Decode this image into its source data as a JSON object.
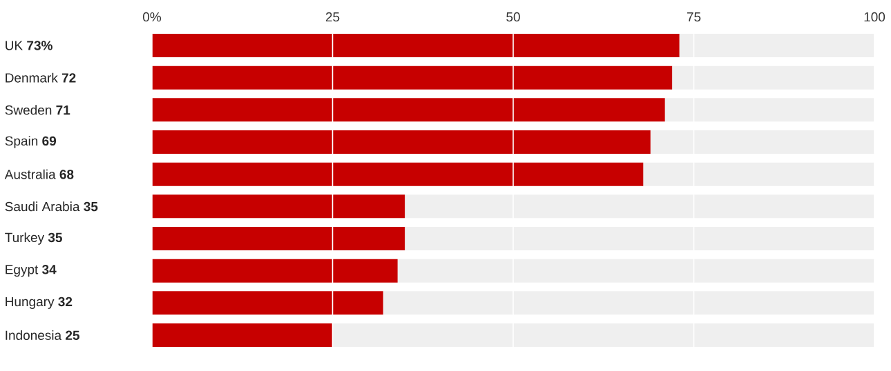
{
  "chart_data": {
    "type": "bar",
    "orientation": "horizontal",
    "stacked": true,
    "categories": [
      "UK **73%**",
      "Denmark **72**",
      "Sweden **71**",
      "Spain **69**",
      "Australia **68**",
      "Saudi Arabia **35**",
      "Turkey **35**",
      "Egypt **34**",
      "Hungary **32**",
      "Indonesia **25**"
    ],
    "series": [
      {
        "color": "#c70000",
        "values": [
          73,
          72,
          71,
          69,
          68,
          35,
          35,
          34,
          32,
          25
        ]
      },
      {
        "color": "#efefef",
        "values": [
          27,
          28,
          29,
          31,
          32,
          65,
          65,
          66,
          68,
          75
        ]
      }
    ],
    "xlim": [
      0,
      100
    ],
    "xticks": [
      {
        "value": 0,
        "label": "0%"
      },
      25,
      50,
      75,
      100
    ],
    "grid": "x"
  }
}
